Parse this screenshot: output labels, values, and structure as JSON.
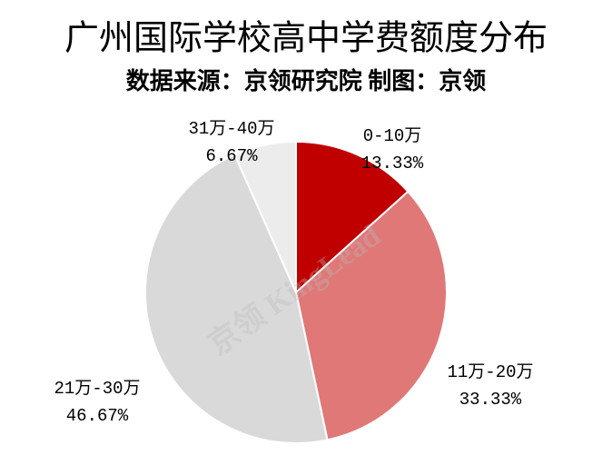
{
  "chart_data": {
    "type": "pie",
    "title": "广州国际学校高中学费额度分布",
    "subtitle": "数据来源：京领研究院 制图：京领",
    "watermark": "京领 KingLead",
    "categories": [
      "0-10万",
      "11万-20万",
      "21万-30万",
      "31万-40万"
    ],
    "values": [
      13.33,
      33.33,
      46.67,
      6.67
    ],
    "value_labels": [
      "13.33%",
      "33.33%",
      "46.67%",
      "6.67%"
    ],
    "colors": [
      "#c00000",
      "#e07878",
      "#d9d9d9",
      "#ececec"
    ]
  }
}
